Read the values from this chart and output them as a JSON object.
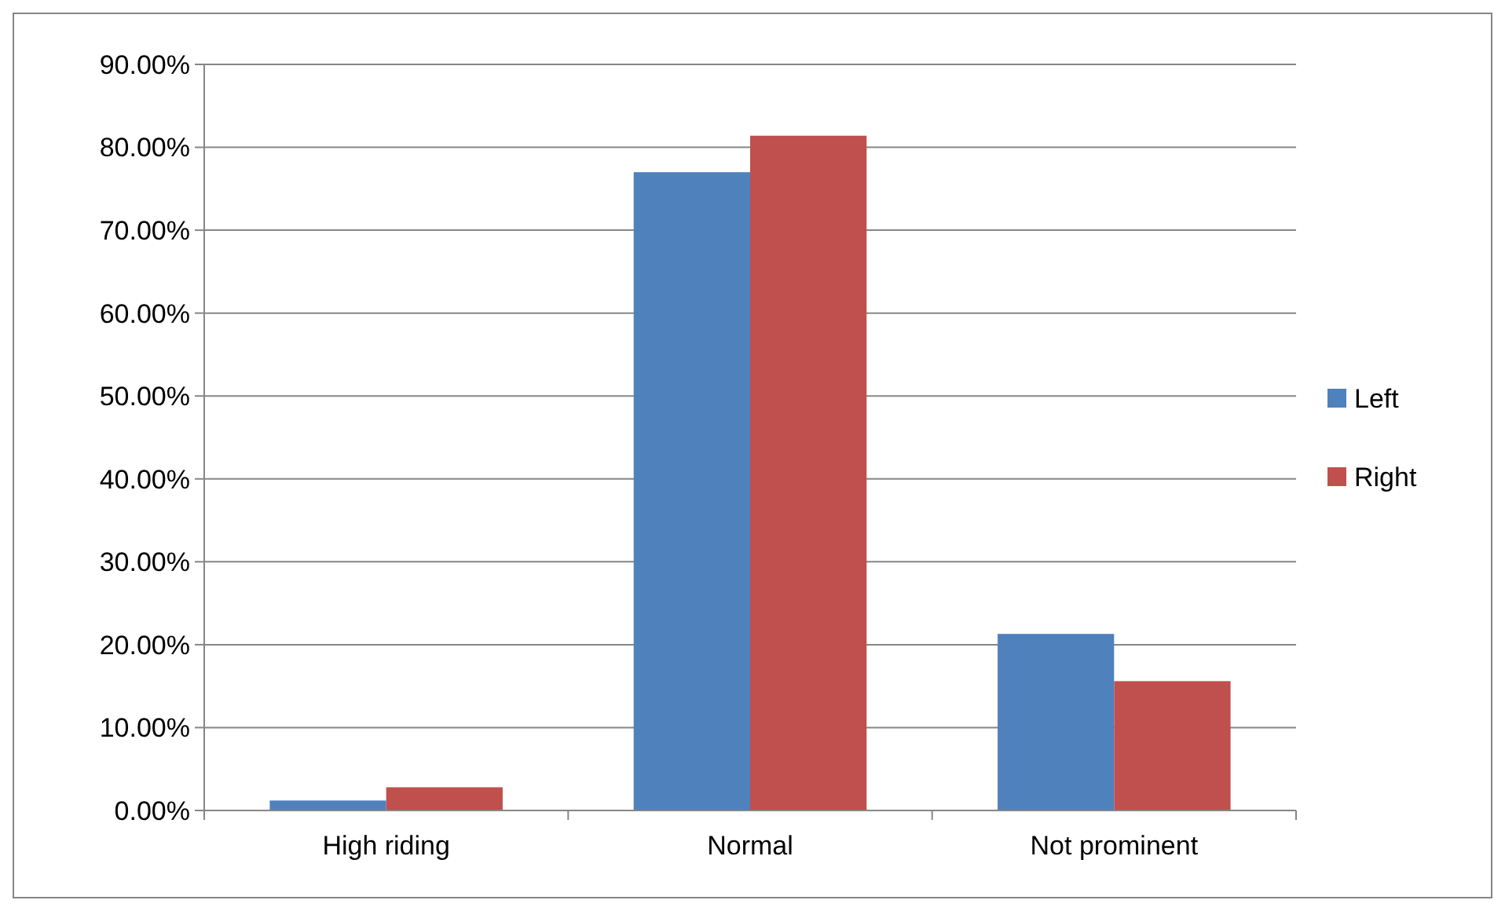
{
  "chart_data": {
    "type": "bar",
    "categories": [
      "High riding",
      "Normal",
      "Not prominent"
    ],
    "series": [
      {
        "name": "Left",
        "color": "#4f81bd",
        "values": [
          1.2,
          77.0,
          21.3
        ]
      },
      {
        "name": "Right",
        "color": "#c0504d",
        "values": [
          2.8,
          81.4,
          15.6
        ]
      }
    ],
    "ylim": [
      0,
      90
    ],
    "yticks": [
      {
        "value": 0,
        "label": "0.00%"
      },
      {
        "value": 10,
        "label": "10.00%"
      },
      {
        "value": 20,
        "label": "20.00%"
      },
      {
        "value": 30,
        "label": "30.00%"
      },
      {
        "value": 40,
        "label": "40.00%"
      },
      {
        "value": 50,
        "label": "50.00%"
      },
      {
        "value": 60,
        "label": "60.00%"
      },
      {
        "value": 70,
        "label": "70.00%"
      },
      {
        "value": 80,
        "label": "80.00%"
      },
      {
        "value": 90,
        "label": "90.00%"
      }
    ],
    "grid": "y",
    "legend": "right"
  }
}
